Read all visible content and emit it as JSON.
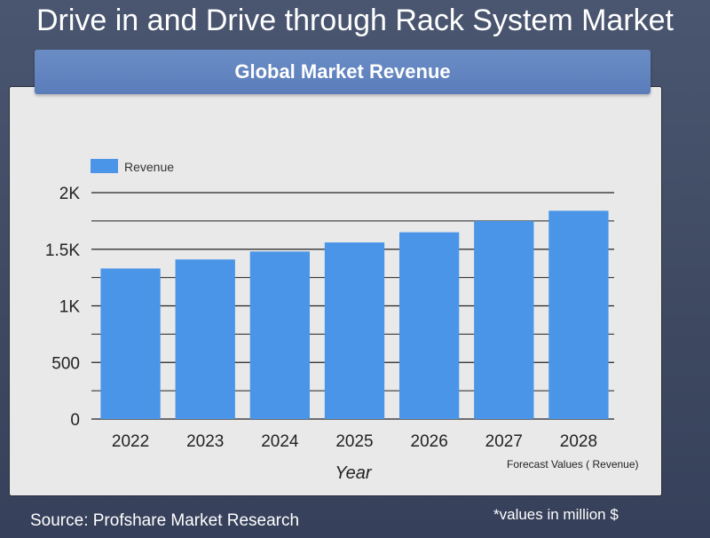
{
  "page": {
    "title": "Drive in and Drive through Rack System Market",
    "card_header": "Global Market Revenue",
    "forecast_note": "Forecast Values ( Revenue)",
    "source": "Source: Profshare Market Research",
    "units_note": "*values in million $"
  },
  "chart_data": {
    "type": "bar",
    "categories": [
      "2022",
      "2023",
      "2024",
      "2025",
      "2026",
      "2027",
      "2028"
    ],
    "series": [
      {
        "name": "Revenue",
        "values": [
          1330,
          1410,
          1480,
          1560,
          1650,
          1750,
          1840
        ],
        "color": "#4a95e8"
      }
    ],
    "xlabel": "Year",
    "ylabel": "",
    "ylim": [
      0,
      2000
    ],
    "yticks": [
      0,
      500,
      1000,
      1500,
      2000
    ],
    "ytick_labels": [
      "0",
      "500",
      "1K",
      "1.5K",
      "2K"
    ],
    "grid": true,
    "legend_position": "top-left"
  }
}
